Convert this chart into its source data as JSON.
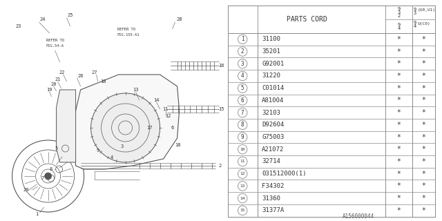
{
  "diagram_id": "A156000044",
  "rows": [
    [
      "1",
      "31100",
      "*",
      "*"
    ],
    [
      "2",
      "35201",
      "*",
      "*"
    ],
    [
      "3",
      "G92001",
      "*",
      "*"
    ],
    [
      "4",
      "31220",
      "*",
      "*"
    ],
    [
      "5",
      "C01014",
      "*",
      "*"
    ],
    [
      "6",
      "A81004",
      "*",
      "*"
    ],
    [
      "7",
      "32103",
      "*",
      "*"
    ],
    [
      "8",
      "D92604",
      "*",
      "*"
    ],
    [
      "9",
      "G75003",
      "*",
      "*"
    ],
    [
      "10",
      "A21072",
      "*",
      "*"
    ],
    [
      "11",
      "32714",
      "*",
      "*"
    ],
    [
      "12",
      "031512000(1)",
      "*",
      "*"
    ],
    [
      "13",
      "F34302",
      "*",
      "*"
    ],
    [
      "14",
      "31360",
      "*",
      "*"
    ],
    [
      "15",
      "31377A",
      "*",
      "*"
    ]
  ],
  "bg_color": "#ffffff",
  "border_color": "#888888",
  "text_color": "#333333",
  "line_color": "#666666",
  "diag_line_color": "#555555"
}
